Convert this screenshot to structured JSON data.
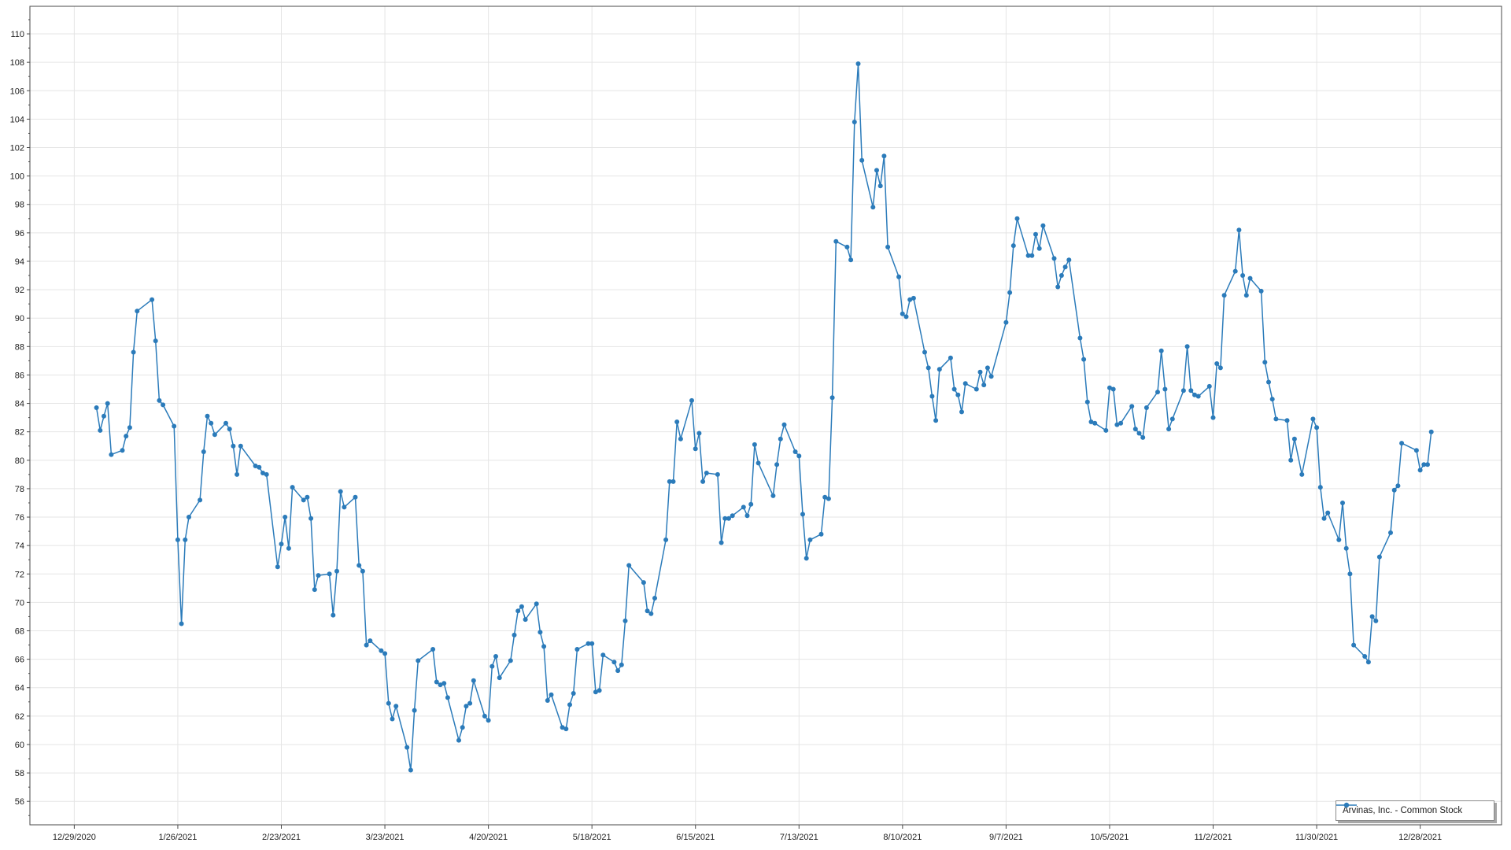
{
  "chart_data": {
    "type": "line",
    "title": "",
    "xlabel": "",
    "ylabel": "",
    "grid": true,
    "legend_position": "bottom-right",
    "marker": "circle",
    "x_min_date": "12/17/2020",
    "x_max_date": "1/19/2022",
    "y_axis_min": 54.35,
    "y_axis_max": 111.94,
    "y_ticks": [
      56,
      58,
      60,
      62,
      64,
      66,
      68,
      70,
      72,
      74,
      76,
      78,
      80,
      82,
      84,
      86,
      88,
      90,
      92,
      94,
      96,
      98,
      100,
      102,
      104,
      106,
      108,
      110
    ],
    "y_minor_step": 1,
    "x_ticks": [
      "12/29/2020",
      "1/26/2021",
      "2/23/2021",
      "3/23/2021",
      "4/20/2021",
      "5/18/2021",
      "6/15/2021",
      "7/13/2021",
      "8/10/2021",
      "9/7/2021",
      "10/5/2021",
      "11/2/2021",
      "11/30/2021",
      "12/28/2021"
    ],
    "series": [
      {
        "name": "Arvinas, Inc. - Common Stock",
        "color": "#2b7bba",
        "points": [
          [
            "1/4/2021",
            83.7
          ],
          [
            "1/5/2021",
            82.1
          ],
          [
            "1/6/2021",
            83.1
          ],
          [
            "1/7/2021",
            84.0
          ],
          [
            "1/8/2021",
            80.4
          ],
          [
            "1/11/2021",
            80.7
          ],
          [
            "1/12/2021",
            81.7
          ],
          [
            "1/13/2021",
            82.3
          ],
          [
            "1/14/2021",
            87.6
          ],
          [
            "1/15/2021",
            90.5
          ],
          [
            "1/19/2021",
            91.3
          ],
          [
            "1/20/2021",
            88.4
          ],
          [
            "1/21/2021",
            84.2
          ],
          [
            "1/22/2021",
            83.9
          ],
          [
            "1/25/2021",
            82.4
          ],
          [
            "1/26/2021",
            74.4
          ],
          [
            "1/27/2021",
            68.5
          ],
          [
            "1/28/2021",
            74.4
          ],
          [
            "1/29/2021",
            76.0
          ],
          [
            "2/1/2021",
            77.2
          ],
          [
            "2/2/2021",
            80.6
          ],
          [
            "2/3/2021",
            83.1
          ],
          [
            "2/4/2021",
            82.6
          ],
          [
            "2/5/2021",
            81.8
          ],
          [
            "2/8/2021",
            82.6
          ],
          [
            "2/9/2021",
            82.2
          ],
          [
            "2/10/2021",
            81.0
          ],
          [
            "2/11/2021",
            79.0
          ],
          [
            "2/12/2021",
            81.0
          ],
          [
            "2/16/2021",
            79.6
          ],
          [
            "2/17/2021",
            79.5
          ],
          [
            "2/18/2021",
            79.1
          ],
          [
            "2/19/2021",
            79.0
          ],
          [
            "2/22/2021",
            72.5
          ],
          [
            "2/23/2021",
            74.1
          ],
          [
            "2/24/2021",
            76.0
          ],
          [
            "2/25/2021",
            73.8
          ],
          [
            "2/26/2021",
            78.1
          ],
          [
            "3/1/2021",
            77.2
          ],
          [
            "3/2/2021",
            77.4
          ],
          [
            "3/3/2021",
            75.9
          ],
          [
            "3/4/2021",
            70.9
          ],
          [
            "3/5/2021",
            71.9
          ],
          [
            "3/8/2021",
            72.0
          ],
          [
            "3/9/2021",
            69.1
          ],
          [
            "3/10/2021",
            72.2
          ],
          [
            "3/11/2021",
            77.8
          ],
          [
            "3/12/2021",
            76.7
          ],
          [
            "3/15/2021",
            77.4
          ],
          [
            "3/16/2021",
            72.6
          ],
          [
            "3/17/2021",
            72.2
          ],
          [
            "3/18/2021",
            67.0
          ],
          [
            "3/19/2021",
            67.3
          ],
          [
            "3/22/2021",
            66.6
          ],
          [
            "3/23/2021",
            66.4
          ],
          [
            "3/24/2021",
            62.9
          ],
          [
            "3/25/2021",
            61.8
          ],
          [
            "3/26/2021",
            62.7
          ],
          [
            "3/29/2021",
            59.8
          ],
          [
            "3/30/2021",
            58.2
          ],
          [
            "3/31/2021",
            62.4
          ],
          [
            "4/1/2021",
            65.9
          ],
          [
            "4/5/2021",
            66.7
          ],
          [
            "4/6/2021",
            64.4
          ],
          [
            "4/7/2021",
            64.2
          ],
          [
            "4/8/2021",
            64.3
          ],
          [
            "4/9/2021",
            63.3
          ],
          [
            "4/12/2021",
            60.3
          ],
          [
            "4/13/2021",
            61.2
          ],
          [
            "4/14/2021",
            62.7
          ],
          [
            "4/15/2021",
            62.9
          ],
          [
            "4/16/2021",
            64.5
          ],
          [
            "4/19/2021",
            62.0
          ],
          [
            "4/20/2021",
            61.7
          ],
          [
            "4/21/2021",
            65.5
          ],
          [
            "4/22/2021",
            66.2
          ],
          [
            "4/23/2021",
            64.7
          ],
          [
            "4/26/2021",
            65.9
          ],
          [
            "4/27/2021",
            67.7
          ],
          [
            "4/28/2021",
            69.4
          ],
          [
            "4/29/2021",
            69.7
          ],
          [
            "4/30/2021",
            68.8
          ],
          [
            "5/3/2021",
            69.9
          ],
          [
            "5/4/2021",
            67.9
          ],
          [
            "5/5/2021",
            66.9
          ],
          [
            "5/6/2021",
            63.1
          ],
          [
            "5/7/2021",
            63.5
          ],
          [
            "5/10/2021",
            61.2
          ],
          [
            "5/11/2021",
            61.1
          ],
          [
            "5/12/2021",
            62.8
          ],
          [
            "5/13/2021",
            63.6
          ],
          [
            "5/14/2021",
            66.7
          ],
          [
            "5/17/2021",
            67.1
          ],
          [
            "5/18/2021",
            67.1
          ],
          [
            "5/19/2021",
            63.7
          ],
          [
            "5/20/2021",
            63.8
          ],
          [
            "5/21/2021",
            66.3
          ],
          [
            "5/24/2021",
            65.8
          ],
          [
            "5/25/2021",
            65.2
          ],
          [
            "5/26/2021",
            65.6
          ],
          [
            "5/27/2021",
            68.7
          ],
          [
            "5/28/2021",
            72.6
          ],
          [
            "6/1/2021",
            71.4
          ],
          [
            "6/2/2021",
            69.4
          ],
          [
            "6/3/2021",
            69.2
          ],
          [
            "6/4/2021",
            70.3
          ],
          [
            "6/7/2021",
            74.4
          ],
          [
            "6/8/2021",
            78.5
          ],
          [
            "6/9/2021",
            78.5
          ],
          [
            "6/10/2021",
            82.7
          ],
          [
            "6/11/2021",
            81.5
          ],
          [
            "6/14/2021",
            84.2
          ],
          [
            "6/15/2021",
            80.8
          ],
          [
            "6/16/2021",
            81.9
          ],
          [
            "6/17/2021",
            78.5
          ],
          [
            "6/18/2021",
            79.1
          ],
          [
            "6/21/2021",
            79.0
          ],
          [
            "6/22/2021",
            74.2
          ],
          [
            "6/23/2021",
            75.9
          ],
          [
            "6/24/2021",
            75.9
          ],
          [
            "6/25/2021",
            76.1
          ],
          [
            "6/28/2021",
            76.7
          ],
          [
            "6/29/2021",
            76.1
          ],
          [
            "6/30/2021",
            76.9
          ],
          [
            "7/1/2021",
            81.1
          ],
          [
            "7/2/2021",
            79.8
          ],
          [
            "7/6/2021",
            77.5
          ],
          [
            "7/7/2021",
            79.7
          ],
          [
            "7/8/2021",
            81.5
          ],
          [
            "7/9/2021",
            82.5
          ],
          [
            "7/12/2021",
            80.6
          ],
          [
            "7/13/2021",
            80.3
          ],
          [
            "7/14/2021",
            76.2
          ],
          [
            "7/15/2021",
            73.1
          ],
          [
            "7/16/2021",
            74.4
          ],
          [
            "7/19/2021",
            74.8
          ],
          [
            "7/20/2021",
            77.4
          ],
          [
            "7/21/2021",
            77.3
          ],
          [
            "7/22/2021",
            84.4
          ],
          [
            "7/23/2021",
            95.4
          ],
          [
            "7/26/2021",
            95.0
          ],
          [
            "7/27/2021",
            94.1
          ],
          [
            "7/28/2021",
            103.8
          ],
          [
            "7/29/2021",
            107.9
          ],
          [
            "7/30/2021",
            101.1
          ],
          [
            "8/2/2021",
            97.8
          ],
          [
            "8/3/2021",
            100.4
          ],
          [
            "8/4/2021",
            99.3
          ],
          [
            "8/5/2021",
            101.4
          ],
          [
            "8/6/2021",
            95.0
          ],
          [
            "8/9/2021",
            92.9
          ],
          [
            "8/10/2021",
            90.3
          ],
          [
            "8/11/2021",
            90.1
          ],
          [
            "8/12/2021",
            91.3
          ],
          [
            "8/13/2021",
            91.4
          ],
          [
            "8/16/2021",
            87.6
          ],
          [
            "8/17/2021",
            86.5
          ],
          [
            "8/18/2021",
            84.5
          ],
          [
            "8/19/2021",
            82.8
          ],
          [
            "8/20/2021",
            86.4
          ],
          [
            "8/23/2021",
            87.2
          ],
          [
            "8/24/2021",
            85.0
          ],
          [
            "8/25/2021",
            84.6
          ],
          [
            "8/26/2021",
            83.4
          ],
          [
            "8/27/2021",
            85.4
          ],
          [
            "8/30/2021",
            85.0
          ],
          [
            "8/31/2021",
            86.2
          ],
          [
            "9/1/2021",
            85.3
          ],
          [
            "9/2/2021",
            86.5
          ],
          [
            "9/3/2021",
            85.9
          ],
          [
            "9/7/2021",
            89.7
          ],
          [
            "9/8/2021",
            91.8
          ],
          [
            "9/9/2021",
            95.1
          ],
          [
            "9/10/2021",
            97.0
          ],
          [
            "9/13/2021",
            94.4
          ],
          [
            "9/14/2021",
            94.4
          ],
          [
            "9/15/2021",
            95.9
          ],
          [
            "9/16/2021",
            94.9
          ],
          [
            "9/17/2021",
            96.5
          ],
          [
            "9/20/2021",
            94.2
          ],
          [
            "9/21/2021",
            92.2
          ],
          [
            "9/22/2021",
            93.0
          ],
          [
            "9/23/2021",
            93.6
          ],
          [
            "9/24/2021",
            94.1
          ],
          [
            "9/27/2021",
            88.6
          ],
          [
            "9/28/2021",
            87.1
          ],
          [
            "9/29/2021",
            84.1
          ],
          [
            "9/30/2021",
            82.7
          ],
          [
            "10/1/2021",
            82.6
          ],
          [
            "10/4/2021",
            82.1
          ],
          [
            "10/5/2021",
            85.1
          ],
          [
            "10/6/2021",
            85.0
          ],
          [
            "10/7/2021",
            82.5
          ],
          [
            "10/8/2021",
            82.6
          ],
          [
            "10/11/2021",
            83.8
          ],
          [
            "10/12/2021",
            82.2
          ],
          [
            "10/13/2021",
            81.9
          ],
          [
            "10/14/2021",
            81.6
          ],
          [
            "10/15/2021",
            83.7
          ],
          [
            "10/18/2021",
            84.8
          ],
          [
            "10/19/2021",
            87.7
          ],
          [
            "10/20/2021",
            85.0
          ],
          [
            "10/21/2021",
            82.2
          ],
          [
            "10/22/2021",
            82.9
          ],
          [
            "10/25/2021",
            84.9
          ],
          [
            "10/26/2021",
            88.0
          ],
          [
            "10/27/2021",
            84.9
          ],
          [
            "10/28/2021",
            84.6
          ],
          [
            "10/29/2021",
            84.5
          ],
          [
            "11/1/2021",
            85.2
          ],
          [
            "11/2/2021",
            83.0
          ],
          [
            "11/3/2021",
            86.8
          ],
          [
            "11/4/2021",
            86.5
          ],
          [
            "11/5/2021",
            91.6
          ],
          [
            "11/8/2021",
            93.3
          ],
          [
            "11/9/2021",
            96.2
          ],
          [
            "11/10/2021",
            93.0
          ],
          [
            "11/11/2021",
            91.6
          ],
          [
            "11/12/2021",
            92.8
          ],
          [
            "11/15/2021",
            91.9
          ],
          [
            "11/16/2021",
            86.9
          ],
          [
            "11/17/2021",
            85.5
          ],
          [
            "11/18/2021",
            84.3
          ],
          [
            "11/19/2021",
            82.9
          ],
          [
            "11/22/2021",
            82.8
          ],
          [
            "11/23/2021",
            80.0
          ],
          [
            "11/24/2021",
            81.5
          ],
          [
            "11/26/2021",
            79.0
          ],
          [
            "11/29/2021",
            82.9
          ],
          [
            "11/30/2021",
            82.3
          ],
          [
            "12/1/2021",
            78.1
          ],
          [
            "12/2/2021",
            75.9
          ],
          [
            "12/3/2021",
            76.3
          ],
          [
            "12/6/2021",
            74.4
          ],
          [
            "12/7/2021",
            77.0
          ],
          [
            "12/8/2021",
            73.8
          ],
          [
            "12/9/2021",
            72.0
          ],
          [
            "12/10/2021",
            67.0
          ],
          [
            "12/13/2021",
            66.2
          ],
          [
            "12/14/2021",
            65.8
          ],
          [
            "12/15/2021",
            69.0
          ],
          [
            "12/16/2021",
            68.7
          ],
          [
            "12/17/2021",
            73.2
          ],
          [
            "12/20/2021",
            74.9
          ],
          [
            "12/21/2021",
            77.9
          ],
          [
            "12/22/2021",
            78.2
          ],
          [
            "12/23/2021",
            81.2
          ],
          [
            "12/27/2021",
            80.7
          ],
          [
            "12/28/2021",
            79.3
          ],
          [
            "12/29/2021",
            79.7
          ],
          [
            "12/30/2021",
            79.7
          ],
          [
            "12/31/2021",
            82.0
          ]
        ]
      }
    ]
  },
  "legend": {
    "label": "Arvinas, Inc. - Common Stock"
  },
  "style": {
    "accent": "#2b7bba",
    "grid_color": "#e5e5e5",
    "axis_color": "#4a4a4a",
    "text_color": "#1c1c1c",
    "background": "#ffffff"
  }
}
